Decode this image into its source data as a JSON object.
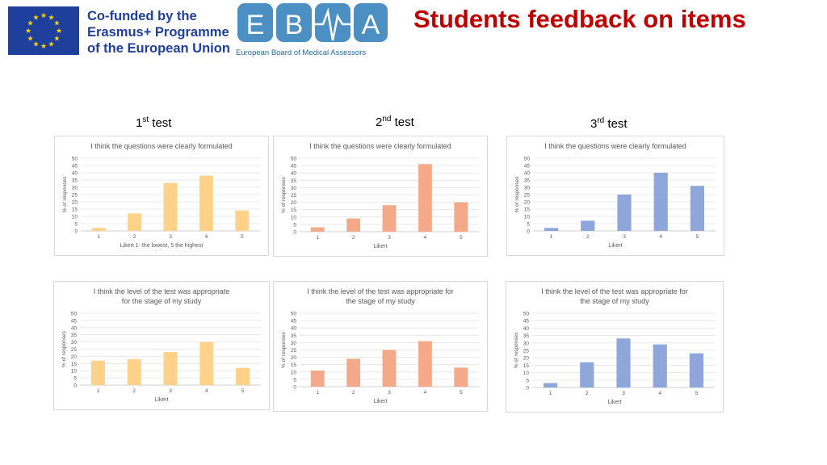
{
  "header": {
    "title": "Students feedback on items",
    "eu_lines": [
      "Co-funded by the",
      "Erasmus+ Programme",
      "of the European Union"
    ],
    "ebma_letters": [
      "E",
      "B",
      "A"
    ],
    "ebma_subtitle": "European Board of Medical Assessors"
  },
  "columns": [
    {
      "num": "1",
      "sup": "st",
      "rest": " test"
    },
    {
      "num": "2",
      "sup": "nd",
      "rest": " test"
    },
    {
      "num": "3",
      "sup": "rd",
      "rest": " test"
    }
  ],
  "colors": {
    "test1": "#ffd28a",
    "test2": "#f4a98b",
    "test3": "#8fa6db",
    "title": "#c00000"
  },
  "chart_data": [
    {
      "type": "bar",
      "title": "I think the questions were clearly formulated",
      "categories": [
        "1",
        "2",
        "3",
        "4",
        "5"
      ],
      "values": [
        2,
        12,
        33,
        38,
        14
      ],
      "ylim": [
        0,
        50
      ],
      "yticks": [
        0,
        5,
        10,
        15,
        20,
        25,
        30,
        35,
        40,
        45,
        50
      ],
      "ylabel": "% of responses",
      "xlabel": "Likert 1- the lowest, 5 the highest",
      "grid": true
    },
    {
      "type": "bar",
      "title": "I think the questions were clearly formulated",
      "categories": [
        "1",
        "2",
        "3",
        "4",
        "5"
      ],
      "values": [
        3,
        9,
        18,
        46,
        20
      ],
      "ylim": [
        0,
        50
      ],
      "yticks": [
        0,
        5,
        10,
        15,
        20,
        25,
        30,
        35,
        40,
        45,
        50
      ],
      "ylabel": "% of responses",
      "xlabel": "Likert",
      "grid": true
    },
    {
      "type": "bar",
      "title": "I think the questions were clearly formulated",
      "categories": [
        "1",
        "2",
        "3",
        "4",
        "5"
      ],
      "values": [
        2,
        7,
        25,
        40,
        31
      ],
      "ylim": [
        0,
        50
      ],
      "yticks": [
        0,
        5,
        10,
        15,
        20,
        25,
        30,
        35,
        40,
        45,
        50
      ],
      "ylabel": "% of responses",
      "xlabel": "Likert",
      "grid": true
    },
    {
      "type": "bar",
      "title": "I think the level of the test was appropriate for the stage of my study",
      "title_lines": [
        "I think the level of the test was appropriate",
        "for the stage of my study"
      ],
      "categories": [
        "1",
        "2",
        "3",
        "4",
        "5"
      ],
      "values": [
        17,
        18,
        23,
        30,
        12
      ],
      "ylim": [
        0,
        50
      ],
      "yticks": [
        0,
        5,
        10,
        15,
        20,
        25,
        30,
        35,
        40,
        45,
        50
      ],
      "ylabel": "% of responses",
      "xlabel": "Likert",
      "grid": true
    },
    {
      "type": "bar",
      "title": "I think the level of the test was appropriate for the stage of my study",
      "title_lines": [
        "I think the level of the test was appropriate for",
        "the stage of my study"
      ],
      "categories": [
        "1",
        "2",
        "3",
        "4",
        "5"
      ],
      "values": [
        11,
        19,
        25,
        31,
        13
      ],
      "ylim": [
        0,
        50
      ],
      "yticks": [
        0,
        5,
        10,
        15,
        20,
        25,
        30,
        35,
        40,
        45,
        50
      ],
      "ylabel": "% of responses",
      "xlabel": "Likert",
      "grid": true
    },
    {
      "type": "bar",
      "title": "I think the level of the test was appropriate for the stage of my study",
      "title_lines": [
        "I think the level of the test was appropriate for",
        "the stage of my study"
      ],
      "categories": [
        "1",
        "2",
        "3",
        "4",
        "5"
      ],
      "values": [
        3,
        17,
        33,
        29,
        23
      ],
      "ylim": [
        0,
        50
      ],
      "yticks": [
        0,
        5,
        10,
        15,
        20,
        25,
        30,
        35,
        40,
        45,
        50
      ],
      "ylabel": "% of responses",
      "xlabel": "Likert",
      "grid": true
    }
  ]
}
